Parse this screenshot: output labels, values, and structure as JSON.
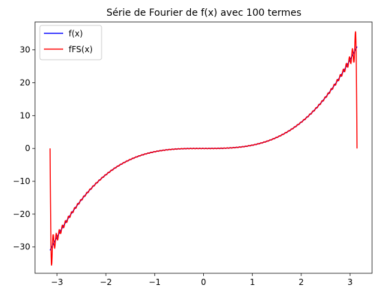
{
  "chart_data": {
    "type": "line",
    "title": "Série de Fourier de f(x) avec 100 termes",
    "xlabel": "",
    "ylabel": "",
    "xlim": [
      -3.45,
      3.45
    ],
    "ylim": [
      -38,
      38.5
    ],
    "x_ticks": [
      -3,
      -2,
      -1,
      0,
      1,
      2,
      3
    ],
    "y_ticks": [
      -30,
      -20,
      -10,
      0,
      10,
      20,
      30
    ],
    "x_tick_labels": [
      "−3",
      "−2",
      "−1",
      "0",
      "1",
      "2",
      "3"
    ],
    "y_tick_labels": [
      "−30",
      "−20",
      "−10",
      "0",
      "10",
      "20",
      "30"
    ],
    "grid": false,
    "legend_position": "top-left",
    "series": [
      {
        "name": "f(x)",
        "color": "#0000ff",
        "function": "x^3",
        "domain": [
          -3.1416,
          3.1416
        ]
      },
      {
        "name": "fFS(x)",
        "color": "#ff0000",
        "function": "fourier-series-of-x^3",
        "terms": 100,
        "domain": [
          -3.1416,
          3.1416
        ]
      }
    ]
  }
}
